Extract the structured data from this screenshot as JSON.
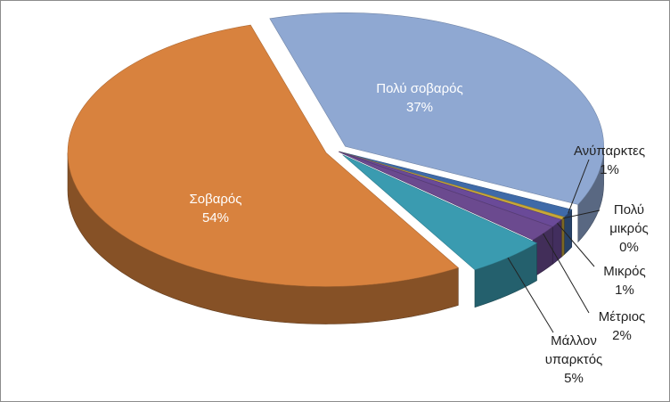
{
  "chart_data": {
    "type": "pie",
    "style": "3d exploded",
    "legend": "none",
    "title": "",
    "categories": [
      "Πολύ σοβαρός",
      "Ανύπαρκτες",
      "Πολύ μικρός",
      "Μικρός",
      "Μέτριος",
      "Μάλλον υπαρκτός",
      "Σοβαρός"
    ],
    "values": [
      37,
      1,
      0,
      1,
      2,
      5,
      54
    ],
    "value_labels": [
      "37%",
      "1%",
      "0%",
      "1%",
      "2%",
      "5%",
      "54%"
    ],
    "label_lines": [
      [
        "Πολύ σοβαρός"
      ],
      [
        "Ανύπαρκτες"
      ],
      [
        "Πολύ",
        "μικρός"
      ],
      [
        "Μικρός"
      ],
      [
        "Μέτριος"
      ],
      [
        "Μάλλον",
        "υπαρκτός"
      ],
      [
        "Σοβαρός"
      ]
    ],
    "colors": [
      "#8fa8d2",
      "#3f6aa8",
      "#c8a838",
      "#6a4a98",
      "#6b4a8f",
      "#3a9bb0",
      "#d8823e"
    ]
  }
}
